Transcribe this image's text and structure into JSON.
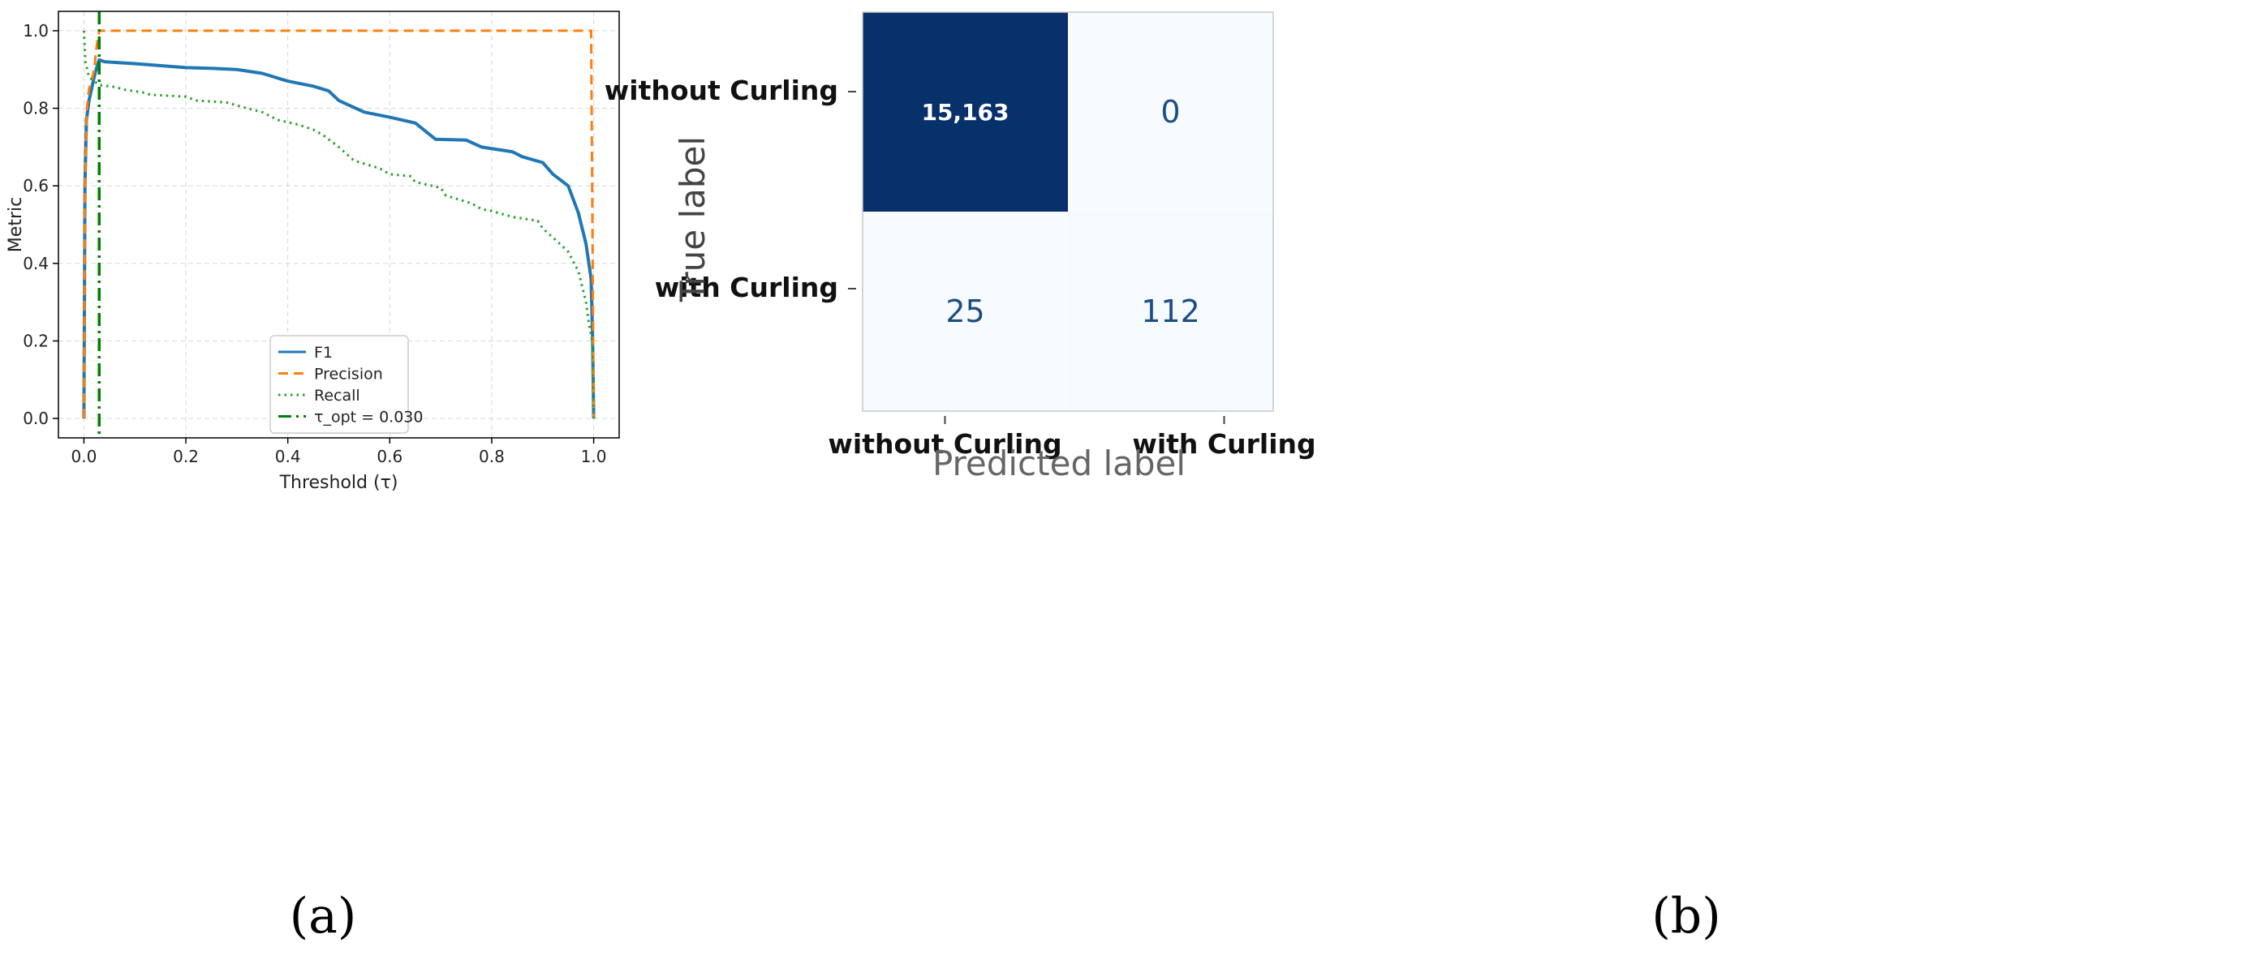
{
  "panels": {
    "a": {
      "caption": "(a)",
      "chart_data": {
        "type": "line",
        "title": "",
        "xlabel": "Threshold (τ)",
        "ylabel": "Metric",
        "xlim": [
          -0.05,
          1.05
        ],
        "ylim": [
          -0.05,
          1.05
        ],
        "xticks": [
          0.0,
          0.2,
          0.4,
          0.6,
          0.8,
          1.0
        ],
        "xtick_labels": [
          "0.0",
          "0.2",
          "0.4",
          "0.6",
          "0.8",
          "1.0"
        ],
        "yticks": [
          0.0,
          0.2,
          0.4,
          0.6,
          0.8,
          1.0
        ],
        "ytick_labels": [
          "0.0",
          "0.2",
          "0.4",
          "0.6",
          "0.8",
          "1.0"
        ],
        "grid": true,
        "legend_position": "lower-center",
        "series": [
          {
            "name": "F1",
            "style": "solid",
            "color": "#1f77b4",
            "points": [
              [
                0.0,
                0.0
              ],
              [
                0.002,
                0.6
              ],
              [
                0.005,
                0.77
              ],
              [
                0.01,
                0.82
              ],
              [
                0.015,
                0.85
              ],
              [
                0.02,
                0.88
              ],
              [
                0.025,
                0.905
              ],
              [
                0.03,
                0.925
              ],
              [
                0.04,
                0.92
              ],
              [
                0.1,
                0.915
              ],
              [
                0.2,
                0.905
              ],
              [
                0.25,
                0.903
              ],
              [
                0.3,
                0.9
              ],
              [
                0.35,
                0.89
              ],
              [
                0.4,
                0.87
              ],
              [
                0.45,
                0.857
              ],
              [
                0.48,
                0.845
              ],
              [
                0.5,
                0.82
              ],
              [
                0.55,
                0.79
              ],
              [
                0.6,
                0.777
              ],
              [
                0.65,
                0.762
              ],
              [
                0.69,
                0.72
              ],
              [
                0.75,
                0.718
              ],
              [
                0.78,
                0.7
              ],
              [
                0.84,
                0.688
              ],
              [
                0.86,
                0.675
              ],
              [
                0.9,
                0.66
              ],
              [
                0.92,
                0.63
              ],
              [
                0.95,
                0.6
              ],
              [
                0.97,
                0.53
              ],
              [
                0.985,
                0.45
              ],
              [
                0.995,
                0.36
              ],
              [
                0.998,
                0.2
              ],
              [
                1.0,
                0.0
              ]
            ]
          },
          {
            "name": "Precision",
            "style": "dashed",
            "color": "#ff7f0e",
            "points": [
              [
                0.0,
                0.0
              ],
              [
                0.002,
                0.6
              ],
              [
                0.006,
                0.8
              ],
              [
                0.01,
                0.85
              ],
              [
                0.015,
                0.87
              ],
              [
                0.02,
                0.9
              ],
              [
                0.025,
                0.96
              ],
              [
                0.03,
                1.0
              ],
              [
                0.5,
                1.0
              ],
              [
                0.995,
                1.0
              ],
              [
                0.997,
                0.6
              ],
              [
                1.0,
                0.0
              ]
            ]
          },
          {
            "name": "Recall",
            "style": "dotted",
            "color": "#2ca02c",
            "points": [
              [
                0.0,
                1.0
              ],
              [
                0.003,
                0.92
              ],
              [
                0.01,
                0.88
              ],
              [
                0.02,
                0.87
              ],
              [
                0.03,
                0.86
              ],
              [
                0.06,
                0.855
              ],
              [
                0.08,
                0.848
              ],
              [
                0.12,
                0.84
              ],
              [
                0.13,
                0.835
              ],
              [
                0.2,
                0.83
              ],
              [
                0.22,
                0.82
              ],
              [
                0.28,
                0.815
              ],
              [
                0.32,
                0.8
              ],
              [
                0.35,
                0.79
              ],
              [
                0.38,
                0.77
              ],
              [
                0.42,
                0.758
              ],
              [
                0.45,
                0.745
              ],
              [
                0.47,
                0.73
              ],
              [
                0.5,
                0.7
              ],
              [
                0.53,
                0.665
              ],
              [
                0.58,
                0.645
              ],
              [
                0.6,
                0.63
              ],
              [
                0.64,
                0.625
              ],
              [
                0.65,
                0.61
              ],
              [
                0.7,
                0.595
              ],
              [
                0.71,
                0.575
              ],
              [
                0.76,
                0.555
              ],
              [
                0.78,
                0.54
              ],
              [
                0.8,
                0.535
              ],
              [
                0.84,
                0.52
              ],
              [
                0.89,
                0.51
              ],
              [
                0.9,
                0.49
              ],
              [
                0.93,
                0.455
              ],
              [
                0.95,
                0.43
              ],
              [
                0.97,
                0.38
              ],
              [
                0.985,
                0.3
              ],
              [
                0.99,
                0.25
              ],
              [
                0.997,
                0.2
              ],
              [
                1.0,
                0.0
              ]
            ]
          },
          {
            "name": "τ_opt = 0.030",
            "style": "dashdot",
            "color": "#008000",
            "vertical_line_x": 0.03
          }
        ]
      }
    },
    "b": {
      "caption": "(b)",
      "chart_data": {
        "type": "heatmap",
        "title": "",
        "xlabel": "Predicted label",
        "ylabel": "True label",
        "x_categories": [
          "without Curling",
          "with Curling"
        ],
        "y_categories": [
          "without Curling",
          "with Curling"
        ],
        "values": [
          [
            15163,
            0
          ],
          [
            25,
            112
          ]
        ],
        "cell_labels": [
          [
            "15,163",
            "0"
          ],
          [
            "25",
            "112"
          ]
        ],
        "colors": {
          "high": "#08306b",
          "low": "#f7fbff",
          "text_on_dark": "#ffffff",
          "text_on_light": "#1c4e84"
        }
      }
    }
  }
}
